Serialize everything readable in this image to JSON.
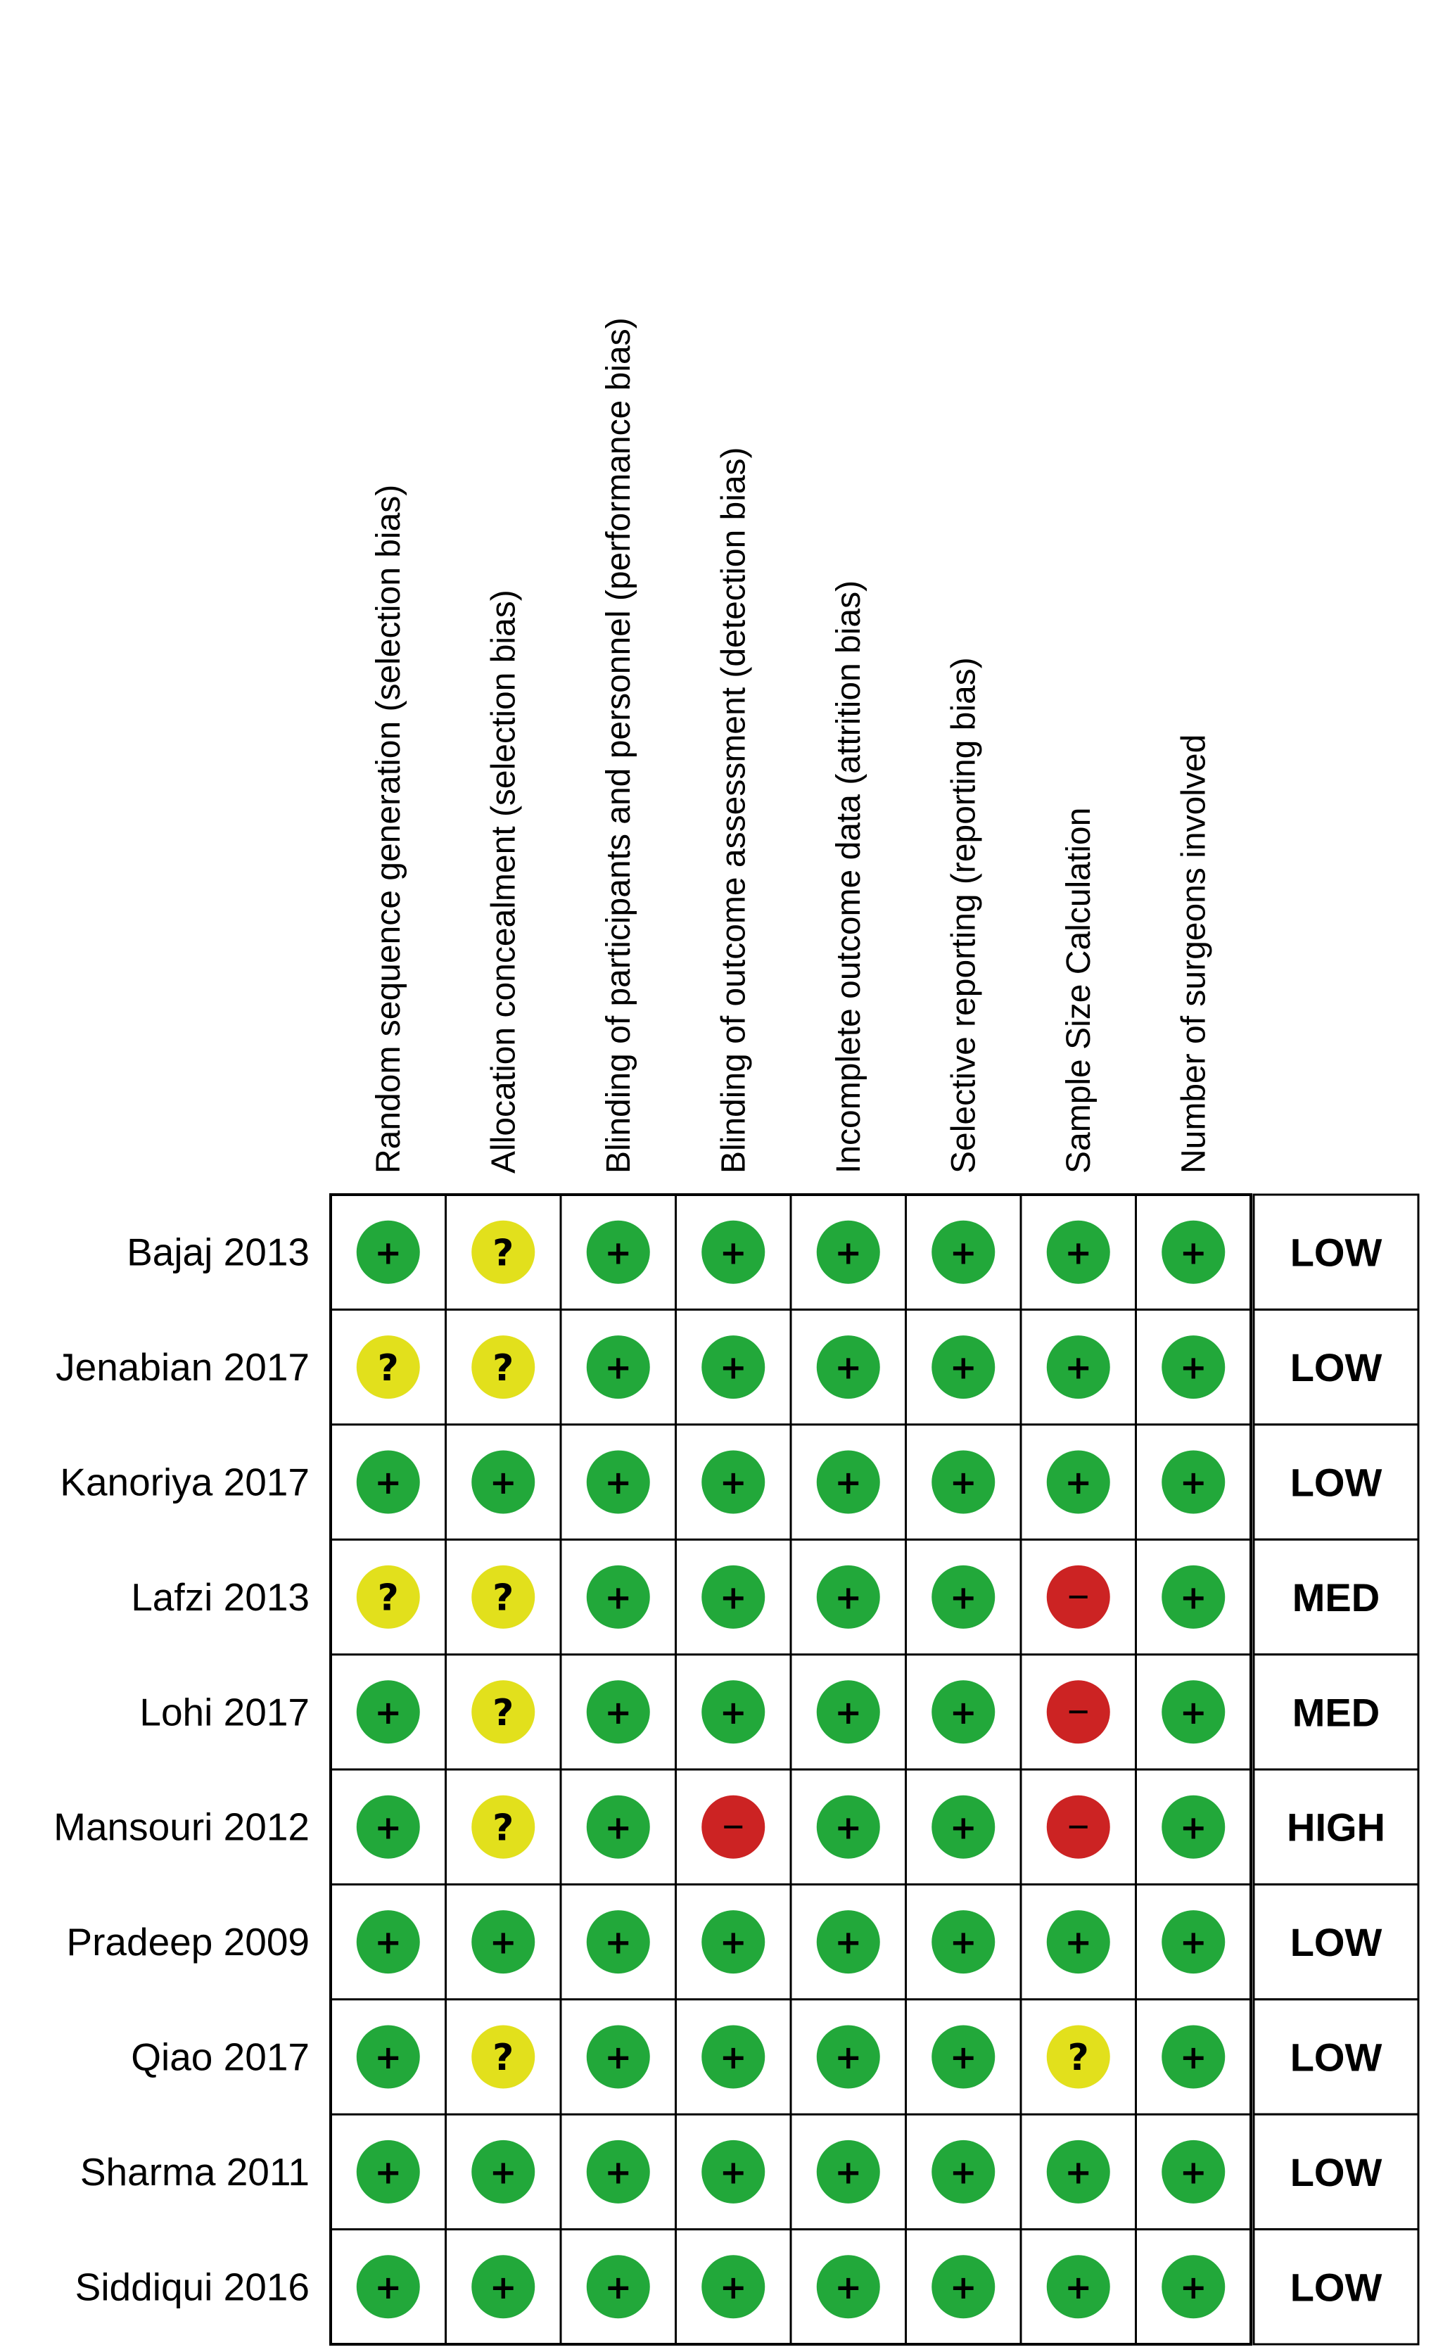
{
  "chart_data": {
    "type": "table",
    "title": "",
    "columns": [
      "Random sequence generation (selection bias)",
      "Allocation concealment (selection bias)",
      "Blinding of participants and personnel (performance bias)",
      "Blinding of outcome assessment (detection bias)",
      "Incomplete outcome data (attrition bias)",
      "Selective reporting (reporting bias)",
      "Sample Size Calculation",
      "Number of surgeons involved"
    ],
    "legend": {
      "low": {
        "symbol": "+",
        "color": "#22a83a"
      },
      "unclear": {
        "symbol": "?",
        "color": "#e2e01c"
      },
      "high": {
        "symbol": "–",
        "color": "#cc2323"
      }
    },
    "studies": [
      {
        "name": "Bajaj  2013",
        "ratings": [
          "low",
          "unclear",
          "low",
          "low",
          "low",
          "low",
          "low",
          "low"
        ],
        "overall": "LOW"
      },
      {
        "name": "Jenabian 2017",
        "ratings": [
          "unclear",
          "unclear",
          "low",
          "low",
          "low",
          "low",
          "low",
          "low"
        ],
        "overall": "LOW"
      },
      {
        "name": "Kanoriya 2017",
        "ratings": [
          "low",
          "low",
          "low",
          "low",
          "low",
          "low",
          "low",
          "low"
        ],
        "overall": "LOW"
      },
      {
        "name": "Lafzi 2013",
        "ratings": [
          "unclear",
          "unclear",
          "low",
          "low",
          "low",
          "low",
          "high",
          "low"
        ],
        "overall": "MED"
      },
      {
        "name": "Lohi 2017",
        "ratings": [
          "low",
          "unclear",
          "low",
          "low",
          "low",
          "low",
          "high",
          "low"
        ],
        "overall": "MED"
      },
      {
        "name": "Mansouri 2012",
        "ratings": [
          "low",
          "unclear",
          "low",
          "high",
          "low",
          "low",
          "high",
          "low"
        ],
        "overall": "HIGH"
      },
      {
        "name": "Pradeep 2009",
        "ratings": [
          "low",
          "low",
          "low",
          "low",
          "low",
          "low",
          "low",
          "low"
        ],
        "overall": "LOW"
      },
      {
        "name": "Qiao 2017",
        "ratings": [
          "low",
          "unclear",
          "low",
          "low",
          "low",
          "low",
          "unclear",
          "low"
        ],
        "overall": "LOW"
      },
      {
        "name": "Sharma 2011",
        "ratings": [
          "low",
          "low",
          "low",
          "low",
          "low",
          "low",
          "low",
          "low"
        ],
        "overall": "LOW"
      },
      {
        "name": "Siddiqui 2016",
        "ratings": [
          "low",
          "low",
          "low",
          "low",
          "low",
          "low",
          "low",
          "low"
        ],
        "overall": "LOW"
      }
    ]
  }
}
